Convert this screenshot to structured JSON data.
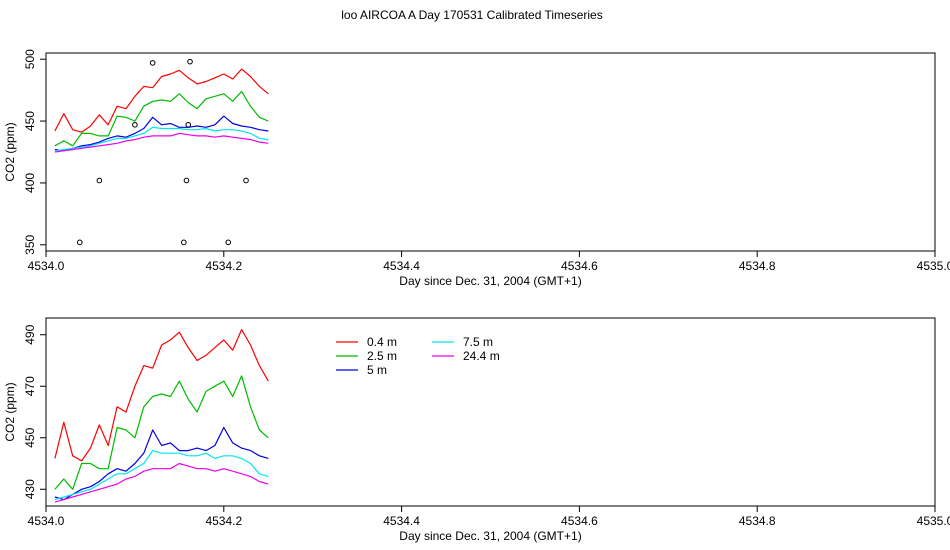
{
  "figure": {
    "title": "loo AIRCOA A  Day 170531  Calibrated Timeseries"
  },
  "chart_data": [
    {
      "type": "line",
      "xlabel": "Day since Dec. 31, 2004 (GMT+1)",
      "ylabel": "CO2 (ppm)",
      "xlim": [
        4534.0,
        4535.0
      ],
      "ylim": [
        345,
        505
      ],
      "xticks": [
        4534.0,
        4534.2,
        4534.4,
        4534.6,
        4534.8,
        4535.0
      ],
      "xtick_labels": [
        "4534.0",
        "4534.2",
        "4534.4",
        "4534.6",
        "4534.8",
        "4535.0"
      ],
      "yticks": [
        350,
        400,
        450,
        500
      ],
      "ytick_labels": [
        "350",
        "400",
        "450",
        "500"
      ],
      "grid": false,
      "x": [
        4534.01,
        4534.02,
        4534.03,
        4534.04,
        4534.05,
        4534.06,
        4534.07,
        4534.08,
        4534.09,
        4534.1,
        4534.11,
        4534.12,
        4534.13,
        4534.14,
        4534.15,
        4534.16,
        4534.17,
        4534.18,
        4534.19,
        4534.2,
        4534.21,
        4534.22,
        4534.23,
        4534.24,
        4534.25
      ],
      "series": [
        {
          "color": "#ff0000",
          "values": [
            442,
            456,
            443,
            441,
            446,
            455,
            447,
            462,
            460,
            470,
            478,
            477,
            486,
            488,
            491,
            485,
            480,
            482,
            485,
            488,
            484,
            492,
            486,
            478,
            472
          ]
        },
        {
          "color": "#00bb00",
          "values": [
            430,
            434,
            430,
            440,
            440,
            438,
            438,
            454,
            453,
            450,
            462,
            466,
            467,
            466,
            472,
            465,
            460,
            468,
            470,
            472,
            466,
            474,
            462,
            453,
            450
          ]
        },
        {
          "color": "#0000dd",
          "values": [
            427,
            426,
            428,
            430,
            431,
            433,
            436,
            438,
            437,
            440,
            444,
            453,
            447,
            448,
            445,
            445,
            446,
            445,
            447,
            454,
            448,
            446,
            445,
            443,
            442
          ]
        },
        {
          "color": "#00e5ee",
          "values": [
            426,
            427,
            428,
            429,
            430,
            432,
            434,
            436,
            436,
            438,
            440,
            445,
            444,
            444,
            444,
            443,
            443,
            444,
            442,
            443,
            443,
            442,
            440,
            436,
            435
          ]
        },
        {
          "color": "#ee00ee",
          "values": [
            425,
            426,
            427,
            428,
            429,
            430,
            431,
            432,
            434,
            435,
            437,
            438,
            438,
            438,
            440,
            439,
            438,
            438,
            437,
            438,
            437,
            436,
            435,
            433,
            432
          ]
        }
      ],
      "points": [
        {
          "x": 4534.038,
          "y": 352
        },
        {
          "x": 4534.06,
          "y": 402
        },
        {
          "x": 4534.1,
          "y": 447
        },
        {
          "x": 4534.12,
          "y": 497
        },
        {
          "x": 4534.155,
          "y": 352
        },
        {
          "x": 4534.158,
          "y": 402
        },
        {
          "x": 4534.16,
          "y": 447
        },
        {
          "x": 4534.162,
          "y": 498
        },
        {
          "x": 4534.205,
          "y": 352
        },
        {
          "x": 4534.225,
          "y": 402
        }
      ]
    },
    {
      "type": "line",
      "xlabel": "Day since Dec. 31, 2004 (GMT+1)",
      "ylabel": "CO2 (ppm)",
      "xlim": [
        4534.0,
        4535.0
      ],
      "ylim": [
        423.5,
        496.5
      ],
      "xticks": [
        4534.0,
        4534.2,
        4534.4,
        4534.6,
        4534.8,
        4535.0
      ],
      "xtick_labels": [
        "4534.0",
        "4534.2",
        "4534.4",
        "4534.6",
        "4534.8",
        "4535.0"
      ],
      "yticks": [
        430,
        450,
        470,
        490
      ],
      "ytick_labels": [
        "430",
        "450",
        "470",
        "490"
      ],
      "grid": false,
      "legend_position": "top-left",
      "x": [
        4534.01,
        4534.02,
        4534.03,
        4534.04,
        4534.05,
        4534.06,
        4534.07,
        4534.08,
        4534.09,
        4534.1,
        4534.11,
        4534.12,
        4534.13,
        4534.14,
        4534.15,
        4534.16,
        4534.17,
        4534.18,
        4534.19,
        4534.2,
        4534.21,
        4534.22,
        4534.23,
        4534.24,
        4534.25
      ],
      "series": [
        {
          "name": "0.4 m",
          "color": "#ff0000",
          "values": [
            442,
            456,
            443,
            441,
            446,
            455,
            447,
            462,
            460,
            470,
            478,
            477,
            486,
            488,
            491,
            485,
            480,
            482,
            485,
            488,
            484,
            492,
            486,
            478,
            472
          ]
        },
        {
          "name": "2.5 m",
          "color": "#00bb00",
          "values": [
            430,
            434,
            430,
            440,
            440,
            438,
            438,
            454,
            453,
            450,
            462,
            466,
            467,
            466,
            472,
            465,
            460,
            468,
            470,
            472,
            466,
            474,
            462,
            453,
            450
          ]
        },
        {
          "name": "5 m",
          "color": "#0000dd",
          "values": [
            427,
            426,
            428,
            430,
            431,
            433,
            436,
            438,
            437,
            440,
            444,
            453,
            447,
            448,
            445,
            445,
            446,
            445,
            447,
            454,
            448,
            446,
            445,
            443,
            442
          ]
        },
        {
          "name": "7.5 m",
          "color": "#00e5ee",
          "values": [
            426,
            427,
            428,
            429,
            430,
            432,
            434,
            436,
            436,
            438,
            440,
            445,
            444,
            444,
            444,
            443,
            443,
            444,
            442,
            443,
            443,
            442,
            440,
            436,
            435
          ]
        },
        {
          "name": "24.4 m",
          "color": "#ee00ee",
          "values": [
            425,
            426,
            427,
            428,
            429,
            430,
            431,
            432,
            434,
            435,
            437,
            438,
            438,
            438,
            440,
            439,
            438,
            438,
            437,
            438,
            437,
            436,
            435,
            433,
            432
          ]
        }
      ]
    }
  ]
}
